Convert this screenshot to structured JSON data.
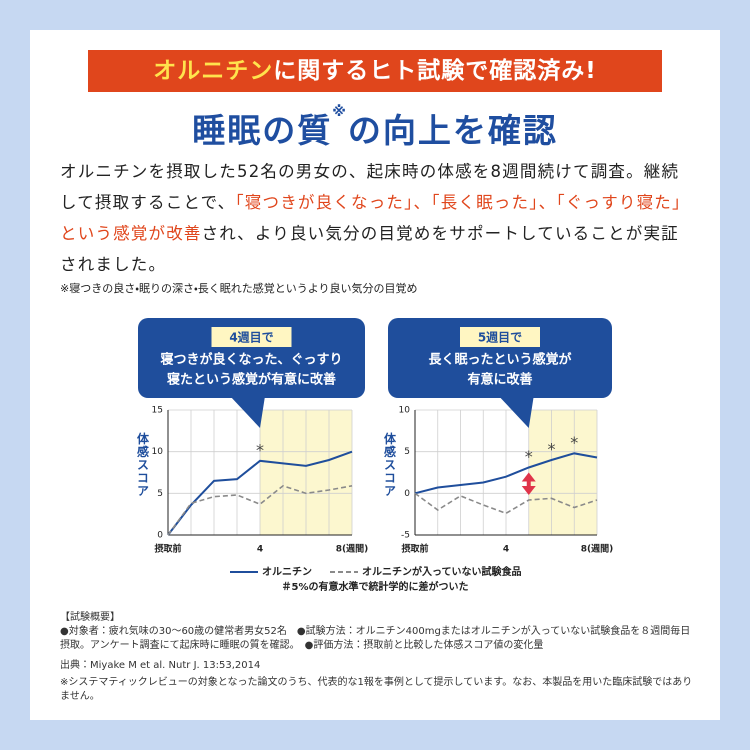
{
  "banner": [
    {
      "text": "オルニチン",
      "accent": true
    },
    {
      "text": "に関するヒト試験で確認済み!"
    }
  ],
  "title": [
    {
      "text": "睡眠の質"
    },
    {
      "text": "※",
      "sup": true
    },
    {
      "text": "の向上を確認"
    }
  ],
  "body": [
    {
      "text": "オルニチンを摂取した52名の男女の、起床時の体感を8週間続けて調査。継続して摂取することで、"
    },
    {
      "text": "「寝つきが良くなった」、「長く眠った」、「ぐっすり寝た」という感覚が改善",
      "highlight": true
    },
    {
      "text": "され、より良い気分の目覚めをサポートしていることが実証されました。"
    }
  ],
  "body_note": "※寝つきの良さ・眠りの深さ・長く眠れた感覚というより良い気分の目覚め",
  "chart_data": [
    {
      "type": "line",
      "callout": {
        "heading": "4週目で",
        "lines": [
          "寝つきが良くなった、ぐっすり",
          "寝たという感覚が有意に改善"
        ]
      },
      "y_label": "体感スコア",
      "x": [
        0,
        1,
        2,
        3,
        4,
        5,
        6,
        7,
        8
      ],
      "xlim": [
        0,
        8
      ],
      "xticks": [
        {
          "value": 0,
          "label": "摂取前"
        },
        4,
        {
          "value": 8,
          "label": "8(週間)"
        }
      ],
      "ylim": [
        0,
        15
      ],
      "yticks": [
        0,
        5,
        10,
        15
      ],
      "shaded_x": [
        4,
        8
      ],
      "annotations": [
        {
          "x": 4,
          "label": "*"
        }
      ],
      "series": [
        {
          "name": "オルニチン",
          "color": "#1f4e9c",
          "values": [
            0,
            3.6,
            6.5,
            6.7,
            8.9,
            8.6,
            8.3,
            9,
            10
          ]
        },
        {
          "name": "オルニチンが入っていない試験食品",
          "color": "#8a8a8a",
          "dashed": true,
          "values": [
            0,
            3.8,
            4.6,
            4.8,
            3.7,
            5.9,
            5,
            5.4,
            5.9
          ]
        }
      ]
    },
    {
      "type": "line",
      "callout": {
        "heading": "5週目で",
        "lines": [
          "長く眠ったという感覚が",
          "有意に改善"
        ]
      },
      "y_label": "体感スコア",
      "x": [
        0,
        1,
        2,
        3,
        4,
        5,
        6,
        7,
        8
      ],
      "xlim": [
        0,
        8
      ],
      "xticks": [
        {
          "value": 0,
          "label": "摂取前"
        },
        4,
        {
          "value": 8,
          "label": "8(週間)"
        }
      ],
      "ylim": [
        -5,
        10
      ],
      "yticks": [
        -5,
        0,
        5,
        10
      ],
      "shaded_x": [
        5,
        8
      ],
      "arrow_x": 5,
      "annotations": [
        {
          "x": 5,
          "label": "*"
        },
        {
          "x": 6,
          "label": "*"
        },
        {
          "x": 7,
          "label": "*"
        }
      ],
      "series": [
        {
          "name": "オルニチン",
          "color": "#1f4e9c",
          "values": [
            0,
            0.7,
            1,
            1.3,
            2,
            3.1,
            4,
            4.8,
            4.3
          ]
        },
        {
          "name": "オルニチンが入っていない試験食品",
          "color": "#8a8a8a",
          "dashed": true,
          "values": [
            0,
            -2,
            -0.3,
            -1.4,
            -2.4,
            -0.8,
            -0.6,
            -1.7,
            -0.8
          ]
        }
      ]
    }
  ],
  "legend_note": "＃5%の有意水準で統計学的に差がついた",
  "summary": {
    "heading": "【試験概要】",
    "text": "●対象者：疲れ気味の30～60歳の健常者男女52名　●試験方法：オルニチン400mgまたはオルニチンが入っていない試験食品を８週間毎日摂取。アンケート調査にて起床時に睡眠の質を確認。　●評価方法：摂取前と比較した体感スコア値の変化量"
  },
  "source": "出典：Miyake M et al. Nutr J. 13:53,2014",
  "footnote": "※システマティックレビューの対象となった論文のうち、代表的な1報を事例として提示しています。なお、本製品を用いた臨床試験ではありません。"
}
